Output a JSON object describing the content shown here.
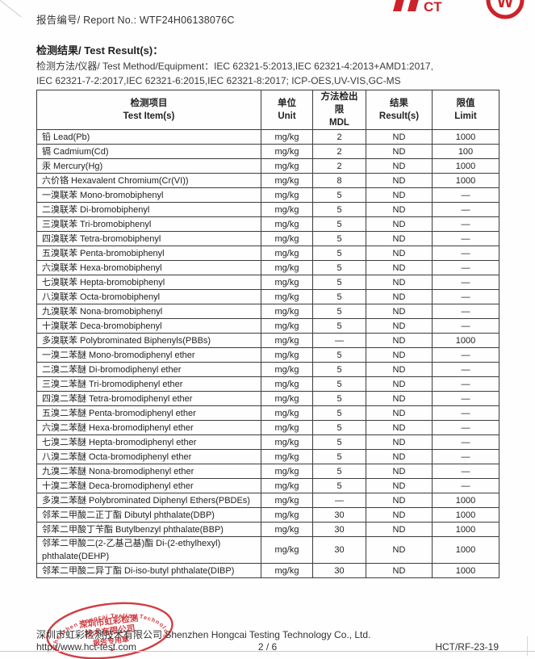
{
  "page": {
    "report_no": "报告编号/ Report No.: WTF24H06138076C"
  },
  "logos": {
    "hct_partial_text": "CT",
    "cert_glyph": "W"
  },
  "results": {
    "title": "检测结果/ Test Result(s)：",
    "method_line1": "检测方法/仪器/ Test Method/Equipment：IEC 62321-5:2013,IEC 62321-4:2013+AMD1:2017,",
    "method_line2": "IEC 62321-7-2:2017,IEC 62321-6:2015,IEC 62321-8:2017; ICP-OES,UV-VIS,GC-MS"
  },
  "table": {
    "headers": [
      {
        "zh": "检测项目",
        "en": "Test Item(s)"
      },
      {
        "zh": "单位",
        "en": "Unit"
      },
      {
        "zh": "方法检出限",
        "en": "MDL"
      },
      {
        "zh": "结果",
        "en": "Result(s)"
      },
      {
        "zh": "限值",
        "en": "Limit"
      }
    ],
    "rows": [
      [
        "铅  Lead(Pb)",
        "mg/kg",
        "2",
        "ND",
        "1000"
      ],
      [
        "镉  Cadmium(Cd)",
        "mg/kg",
        "2",
        "ND",
        "100"
      ],
      [
        "汞  Mercury(Hg)",
        "mg/kg",
        "2",
        "ND",
        "1000"
      ],
      [
        "六价铬  Hexavalent Chromium(Cr(VI))",
        "mg/kg",
        "8",
        "ND",
        "1000"
      ],
      [
        "一溴联苯  Mono-bromobiphenyl",
        "mg/kg",
        "5",
        "ND",
        "—"
      ],
      [
        "二溴联苯  Di-bromobiphenyl",
        "mg/kg",
        "5",
        "ND",
        "—"
      ],
      [
        "三溴联苯  Tri-bromobiphenyl",
        "mg/kg",
        "5",
        "ND",
        "—"
      ],
      [
        "四溴联苯  Tetra-bromobiphenyl",
        "mg/kg",
        "5",
        "ND",
        "—"
      ],
      [
        "五溴联苯  Penta-bromobiphenyl",
        "mg/kg",
        "5",
        "ND",
        "—"
      ],
      [
        "六溴联苯  Hexa-bromobiphenyl",
        "mg/kg",
        "5",
        "ND",
        "—"
      ],
      [
        "七溴联苯  Hepta-bromobiphenyl",
        "mg/kg",
        "5",
        "ND",
        "—"
      ],
      [
        "八溴联苯  Octa-bromobiphenyl",
        "mg/kg",
        "5",
        "ND",
        "—"
      ],
      [
        "九溴联苯  Nona-bromobiphenyl",
        "mg/kg",
        "5",
        "ND",
        "—"
      ],
      [
        "十溴联苯  Deca-bromobiphenyl",
        "mg/kg",
        "5",
        "ND",
        "—"
      ],
      [
        "多溴联苯  Polybrominated Biphenyls(PBBs)",
        "mg/kg",
        "—",
        "ND",
        "1000"
      ],
      [
        "一溴二苯醚  Mono-bromodiphenyl ether",
        "mg/kg",
        "5",
        "ND",
        "—"
      ],
      [
        "二溴二苯醚  Di-bromodiphenyl ether",
        "mg/kg",
        "5",
        "ND",
        "—"
      ],
      [
        "三溴二苯醚  Tri-bromodiphenyl ether",
        "mg/kg",
        "5",
        "ND",
        "—"
      ],
      [
        "四溴二苯醚  Tetra-bromodiphenyl ether",
        "mg/kg",
        "5",
        "ND",
        "—"
      ],
      [
        "五溴二苯醚  Penta-bromodiphenyl ether",
        "mg/kg",
        "5",
        "ND",
        "—"
      ],
      [
        "六溴二苯醚  Hexa-bromodiphenyl ether",
        "mg/kg",
        "5",
        "ND",
        "—"
      ],
      [
        "七溴二苯醚  Hepta-bromodiphenyl ether",
        "mg/kg",
        "5",
        "ND",
        "—"
      ],
      [
        "八溴二苯醚  Octa-bromodiphenyl ether",
        "mg/kg",
        "5",
        "ND",
        "—"
      ],
      [
        "九溴二苯醚  Nona-bromodiphenyl ether",
        "mg/kg",
        "5",
        "ND",
        "—"
      ],
      [
        "十溴二苯醚  Deca-bromodiphenyl ether",
        "mg/kg",
        "5",
        "ND",
        "—"
      ],
      [
        "多溴二苯醚  Polybrominated Diphenyl Ethers(PBDEs)",
        "mg/kg",
        "—",
        "ND",
        "1000"
      ],
      [
        "邻苯二甲酸二正丁酯  Dibutyl phthalate(DBP)",
        "mg/kg",
        "30",
        "ND",
        "1000"
      ],
      [
        "邻苯二甲酸丁苄酯  Butylbenzyl phthalate(BBP)",
        "mg/kg",
        "30",
        "ND",
        "1000"
      ],
      [
        "邻苯二甲酸二(2-乙基己基)酯  Di-(2-ethylhexyl)\nphthalate(DEHP)",
        "mg/kg",
        "30",
        "ND",
        "1000"
      ],
      [
        "邻苯二甲酸二异丁酯  Di-iso-butyl phthalate(DIBP)",
        "mg/kg",
        "30",
        "ND",
        "1000"
      ]
    ]
  },
  "stamp": {
    "ring_text": "Shenzhen Hongcai Testing Technology Co., Ltd.",
    "line1": "深圳市虹彩检测",
    "line2": "技术有限公司",
    "line3": "报告专用章",
    "star": "★"
  },
  "footer": {
    "company": "深圳市虹彩检测技术有限公司  Shenzhen Hongcai Testing Technology Co., Ltd.",
    "website": "http://www.hct-test.com",
    "page_indicator": "2 / 6",
    "doc_ref": "HCT/RF-23-19"
  },
  "colors": {
    "accent_red": "#cc2229",
    "text": "#2b2b2b",
    "border": "#3c3c3c"
  }
}
